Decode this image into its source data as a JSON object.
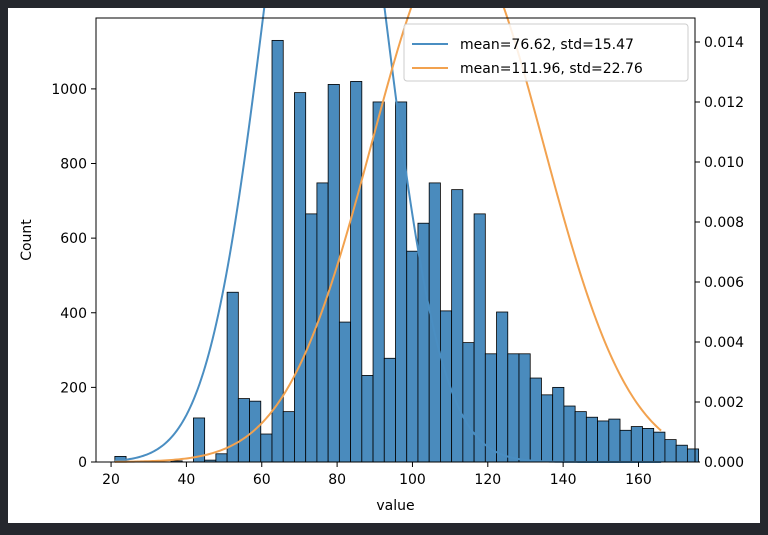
{
  "chart_data": {
    "type": "bar",
    "title": "",
    "xlabel": "value",
    "ylabel": "Count",
    "y2label": "",
    "xlim": [
      16,
      175
    ],
    "ylim": [
      0,
      1190
    ],
    "y2lim": [
      0,
      0.0148
    ],
    "xticks": [
      20,
      40,
      60,
      80,
      100,
      120,
      140,
      160
    ],
    "yticks": [
      0,
      200,
      400,
      600,
      800,
      1000
    ],
    "y2ticks": [
      0.0,
      0.002,
      0.004,
      0.006,
      0.008,
      0.01,
      0.012,
      0.014
    ],
    "y2tick_labels": [
      "0.000",
      "0.002",
      "0.004",
      "0.006",
      "0.008",
      "0.010",
      "0.012",
      "0.014"
    ],
    "bar_color": "#4a8bbd",
    "bar_edge_color": "#000000",
    "bins": {
      "start": 21,
      "width": 2.98,
      "counts": [
        15,
        0,
        3,
        3,
        0,
        3,
        0,
        118,
        5,
        22,
        455,
        170,
        163,
        75,
        1130,
        135,
        990,
        665,
        748,
        1012,
        375,
        1020,
        232,
        965,
        278,
        965,
        565,
        640,
        748,
        405,
        730,
        320,
        665,
        290,
        402,
        290,
        290,
        225,
        180,
        200,
        150,
        135,
        120,
        110,
        115,
        85,
        95,
        90,
        80,
        60,
        45,
        35
      ]
    },
    "series": [
      {
        "name": "mean=76.62, std=15.47",
        "type": "line",
        "axis": "right",
        "color": "#4a8ec2",
        "mean": 76.62,
        "std": 15.47,
        "x_range": [
          21,
          166
        ]
      },
      {
        "name": "mean=111.96, std=22.76",
        "type": "line",
        "axis": "right",
        "color": "#f2a24f",
        "mean": 111.96,
        "std": 22.76,
        "x_range": [
          21,
          166
        ]
      }
    ],
    "legend_position": "top-right",
    "grid": false
  }
}
